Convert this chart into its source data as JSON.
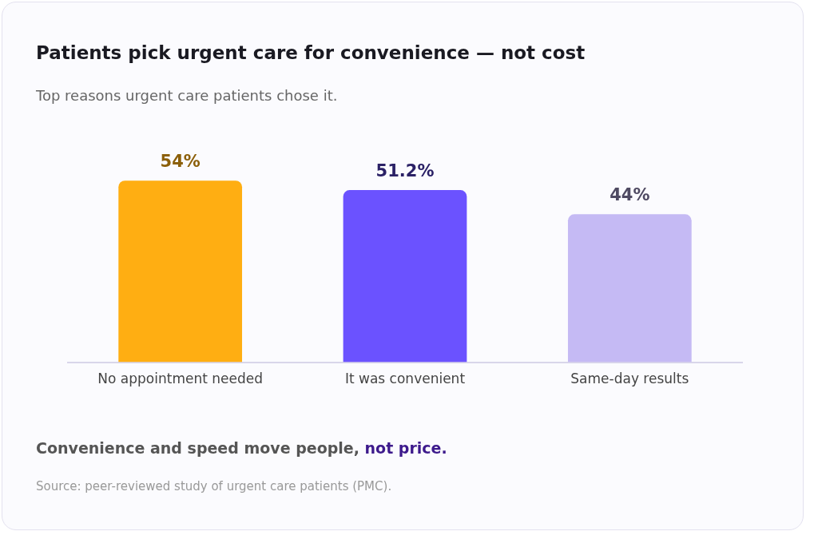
{
  "chart_data": {
    "type": "bar",
    "title": "Patients pick urgent care for convenience — not cost",
    "subtitle": "Top reasons urgent care patients chose it.",
    "categories": [
      "No appointment needed",
      "It was convenient",
      "Same-day results"
    ],
    "values": [
      54,
      51.2,
      44
    ],
    "colors": [
      "#ffae12",
      "#6b52ff",
      "#c5baf4"
    ],
    "value_labels": [
      "54%",
      "51.2%",
      "44%"
    ],
    "tick_labels": "x",
    "grid": false,
    "legend": false,
    "annotations": [
      "Convenience and speed move people,",
      "not price.",
      "Source: peer-reviewed study of urgent care patients (PMC)."
    ]
  }
}
